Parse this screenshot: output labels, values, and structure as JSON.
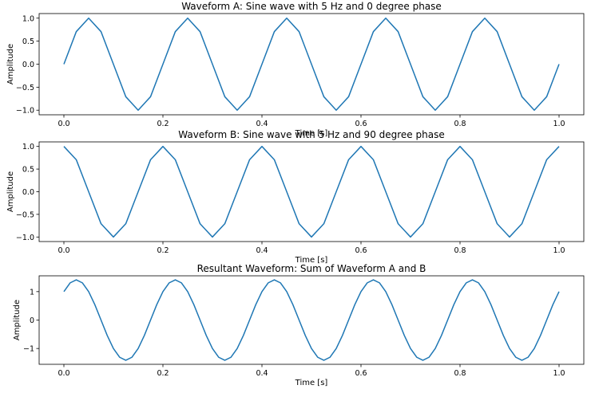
{
  "colors": {
    "line": "#1f77b4",
    "axes": "#000000",
    "background": "#ffffff"
  },
  "chart_data": [
    {
      "type": "line",
      "title": "Waveform A: Sine wave with 5 Hz and 0 degree phase",
      "xlabel": "Time [s]",
      "ylabel": "Amplitude",
      "xlim": [
        -0.05,
        1.05
      ],
      "ylim": [
        -1.1,
        1.1
      ],
      "x_ticks": [
        0.0,
        0.2,
        0.4,
        0.6,
        0.8,
        1.0
      ],
      "x_tick_labels": [
        "0.0",
        "0.2",
        "0.4",
        "0.6",
        "0.8",
        "1.0"
      ],
      "y_ticks": [
        1.0,
        0.5,
        0.0,
        -0.5,
        -1.0
      ],
      "y_tick_labels": [
        "1.0",
        "0.5",
        "0.0",
        "−0.5",
        "−1.0"
      ],
      "grid": false,
      "series": [
        {
          "x": [
            0,
            0.025,
            0.05,
            0.075,
            0.1,
            0.125,
            0.15,
            0.175,
            0.2,
            0.225,
            0.25,
            0.275,
            0.3,
            0.325,
            0.35,
            0.375,
            0.4,
            0.425,
            0.45,
            0.475,
            0.5,
            0.525,
            0.55,
            0.575,
            0.6,
            0.625,
            0.65,
            0.675,
            0.7,
            0.725,
            0.75,
            0.775,
            0.8,
            0.825,
            0.85,
            0.875,
            0.9,
            0.925,
            0.95,
            0.975,
            1.0
          ],
          "values": [
            0,
            0.707,
            1,
            0.707,
            0,
            -0.707,
            -1,
            -0.707,
            0,
            0.707,
            1,
            0.707,
            0,
            -0.707,
            -1,
            -0.707,
            0,
            0.707,
            1,
            0.707,
            0,
            -0.707,
            -1,
            -0.707,
            0,
            0.707,
            1,
            0.707,
            0,
            -0.707,
            -1,
            -0.707,
            0,
            0.707,
            1,
            0.707,
            0,
            -0.707,
            -1,
            -0.707,
            0
          ]
        }
      ]
    },
    {
      "type": "line",
      "title": "Waveform B: Sine wave with 5 Hz and 90 degree phase",
      "xlabel": "Time [s]",
      "ylabel": "Amplitude",
      "xlim": [
        -0.05,
        1.05
      ],
      "ylim": [
        -1.1,
        1.1
      ],
      "x_ticks": [
        0.0,
        0.2,
        0.4,
        0.6,
        0.8,
        1.0
      ],
      "x_tick_labels": [
        "0.0",
        "0.2",
        "0.4",
        "0.6",
        "0.8",
        "1.0"
      ],
      "y_ticks": [
        1.0,
        0.5,
        0.0,
        -0.5,
        -1.0
      ],
      "y_tick_labels": [
        "1.0",
        "0.5",
        "0.0",
        "−0.5",
        "−1.0"
      ],
      "grid": false,
      "series": [
        {
          "x": [
            0,
            0.025,
            0.05,
            0.075,
            0.1,
            0.125,
            0.15,
            0.175,
            0.2,
            0.225,
            0.25,
            0.275,
            0.3,
            0.325,
            0.35,
            0.375,
            0.4,
            0.425,
            0.45,
            0.475,
            0.5,
            0.525,
            0.55,
            0.575,
            0.6,
            0.625,
            0.65,
            0.675,
            0.7,
            0.725,
            0.75,
            0.775,
            0.8,
            0.825,
            0.85,
            0.875,
            0.9,
            0.925,
            0.95,
            0.975,
            1.0
          ],
          "values": [
            1,
            0.707,
            0,
            -0.707,
            -1,
            -0.707,
            0,
            0.707,
            1,
            0.707,
            0,
            -0.707,
            -1,
            -0.707,
            0,
            0.707,
            1,
            0.707,
            0,
            -0.707,
            -1,
            -0.707,
            0,
            0.707,
            1,
            0.707,
            0,
            -0.707,
            -1,
            -0.707,
            0,
            0.707,
            1,
            0.707,
            0,
            -0.707,
            -1,
            -0.707,
            0,
            0.707,
            1
          ]
        }
      ]
    },
    {
      "type": "line",
      "title": "Resultant Waveform: Sum of Waveform A and B",
      "xlabel": "Time [s]",
      "ylabel": "Amplitude",
      "xlim": [
        -0.05,
        1.05
      ],
      "ylim": [
        -1.556,
        1.556
      ],
      "x_ticks": [
        0.0,
        0.2,
        0.4,
        0.6,
        0.8,
        1.0
      ],
      "x_tick_labels": [
        "0.0",
        "0.2",
        "0.4",
        "0.6",
        "0.8",
        "1.0"
      ],
      "y_ticks": [
        1,
        0,
        -1
      ],
      "y_tick_labels": [
        "1",
        "0",
        "−1"
      ],
      "grid": false,
      "series": [
        {
          "x": [
            0,
            0.0125,
            0.025,
            0.0375,
            0.05,
            0.0625,
            0.075,
            0.0875,
            0.1,
            0.1125,
            0.125,
            0.1375,
            0.15,
            0.1625,
            0.175,
            0.1875,
            0.2,
            0.2125,
            0.225,
            0.2375,
            0.25,
            0.2625,
            0.275,
            0.2875,
            0.3,
            0.3125,
            0.325,
            0.3375,
            0.35,
            0.3625,
            0.375,
            0.3875,
            0.4,
            0.4125,
            0.425,
            0.4375,
            0.45,
            0.4625,
            0.475,
            0.4875,
            0.5,
            0.5125,
            0.525,
            0.5375,
            0.55,
            0.5625,
            0.575,
            0.5875,
            0.6,
            0.6125,
            0.625,
            0.6375,
            0.65,
            0.6625,
            0.675,
            0.6875,
            0.7,
            0.7125,
            0.725,
            0.7375,
            0.75,
            0.7625,
            0.775,
            0.7875,
            0.8,
            0.8125,
            0.825,
            0.8375,
            0.85,
            0.8625,
            0.875,
            0.8875,
            0.9,
            0.9125,
            0.925,
            0.9375,
            0.95,
            0.9625,
            0.975,
            0.9875,
            1.0
          ],
          "values": [
            1,
            1.307,
            1.414,
            1.307,
            1,
            0.541,
            0,
            -0.541,
            -1,
            -1.307,
            -1.414,
            -1.307,
            -1,
            -0.541,
            0,
            0.541,
            1,
            1.307,
            1.414,
            1.307,
            1,
            0.541,
            0,
            -0.541,
            -1,
            -1.307,
            -1.414,
            -1.307,
            -1,
            -0.541,
            0,
            0.541,
            1,
            1.307,
            1.414,
            1.307,
            1,
            0.541,
            0,
            -0.541,
            -1,
            -1.307,
            -1.414,
            -1.307,
            -1,
            -0.541,
            0,
            0.541,
            1,
            1.307,
            1.414,
            1.307,
            1,
            0.541,
            0,
            -0.541,
            -1,
            -1.307,
            -1.414,
            -1.307,
            -1,
            -0.541,
            0,
            0.541,
            1,
            1.307,
            1.414,
            1.307,
            1,
            0.541,
            0,
            -0.541,
            -1,
            -1.307,
            -1.414,
            -1.307,
            -1,
            -0.541,
            0,
            0.541,
            1
          ]
        }
      ]
    }
  ]
}
